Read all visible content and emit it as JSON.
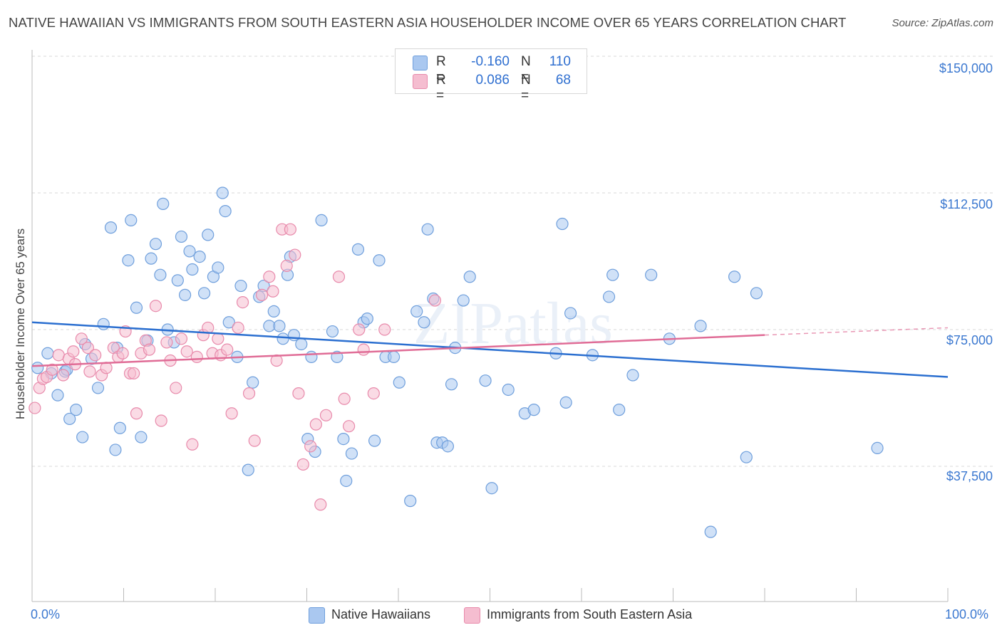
{
  "header": {
    "title": "NATIVE HAWAIIAN VS IMMIGRANTS FROM SOUTH EASTERN ASIA HOUSEHOLDER INCOME OVER 65 YEARS CORRELATION CHART",
    "source": "Source: ZipAtlas.com"
  },
  "watermark": "ZIPatlas",
  "colors": {
    "blue_fill": "#aac8f0",
    "blue_stroke": "#6f9fdc",
    "blue_line": "#2b6fd0",
    "pink_fill": "#f5bdd0",
    "pink_stroke": "#e88aab",
    "pink_line": "#e06c96",
    "axis_text": "#3b78d0",
    "grid": "#d9d9d9"
  },
  "legend_top": {
    "rows": [
      {
        "r_label": "R =",
        "r_value": "-0.160",
        "n_label": "N =",
        "n_value": "110"
      },
      {
        "r_label": "R =",
        "r_value": "0.086",
        "n_label": "N =",
        "n_value": "68"
      }
    ]
  },
  "legend_bottom": [
    "Native Hawaiians",
    "Immigrants from South Eastern Asia"
  ],
  "chart_data": {
    "type": "scatter",
    "title": "NATIVE HAWAIIAN VS IMMIGRANTS FROM SOUTH EASTERN ASIA HOUSEHOLDER INCOME OVER 65 YEARS CORRELATION CHART",
    "xlabel": "",
    "ylabel": "Householder Income Over 65 years",
    "xlim": [
      0,
      100
    ],
    "ylim": [
      0,
      150000
    ],
    "x_tick_labels": [
      "0.0%",
      "100.0%"
    ],
    "y_ticks": [
      {
        "value": 37500,
        "label": "$37,500"
      },
      {
        "value": 75000,
        "label": "$75,000"
      },
      {
        "value": 112500,
        "label": "$112,500"
      },
      {
        "value": 150000,
        "label": "$150,000"
      }
    ],
    "grid": "horizontal dashed",
    "legend_position": "top-center",
    "series": [
      {
        "name": "Native Hawaiians",
        "color": "#6f9fdc",
        "trend": {
          "x": [
            0,
            100
          ],
          "y": [
            77000,
            62000
          ]
        },
        "points": [
          [
            0.6,
            64500
          ],
          [
            1.7,
            68500
          ],
          [
            2.1,
            63000
          ],
          [
            2.8,
            57000
          ],
          [
            3.6,
            63500
          ],
          [
            3.8,
            64000
          ],
          [
            4.1,
            50500
          ],
          [
            4.8,
            53000
          ],
          [
            5.5,
            45500
          ],
          [
            5.8,
            71000
          ],
          [
            6.5,
            67000
          ],
          [
            7.2,
            59000
          ],
          [
            7.8,
            76500
          ],
          [
            8.6,
            103000
          ],
          [
            9.1,
            42000
          ],
          [
            9.3,
            70000
          ],
          [
            9.6,
            48000
          ],
          [
            10.5,
            94000
          ],
          [
            10.8,
            105000
          ],
          [
            11.4,
            81000
          ],
          [
            11.9,
            45500
          ],
          [
            12.6,
            72000
          ],
          [
            13.0,
            94500
          ],
          [
            13.5,
            98500
          ],
          [
            14.0,
            90000
          ],
          [
            14.3,
            109500
          ],
          [
            14.8,
            75000
          ],
          [
            15.5,
            71500
          ],
          [
            15.9,
            88500
          ],
          [
            16.3,
            100500
          ],
          [
            16.7,
            84500
          ],
          [
            17.2,
            96500
          ],
          [
            17.5,
            91500
          ],
          [
            18.3,
            95000
          ],
          [
            18.8,
            85000
          ],
          [
            19.2,
            101000
          ],
          [
            19.8,
            89500
          ],
          [
            20.3,
            92000
          ],
          [
            20.8,
            112500
          ],
          [
            21.1,
            107500
          ],
          [
            21.5,
            77000
          ],
          [
            22.4,
            67500
          ],
          [
            22.8,
            87000
          ],
          [
            23.6,
            36500
          ],
          [
            24.1,
            60500
          ],
          [
            24.8,
            84000
          ],
          [
            25.3,
            87000
          ],
          [
            25.9,
            76000
          ],
          [
            26.4,
            80000
          ],
          [
            27.0,
            76000
          ],
          [
            27.4,
            72500
          ],
          [
            27.9,
            90000
          ],
          [
            28.2,
            95000
          ],
          [
            28.6,
            73500
          ],
          [
            29.4,
            71000
          ],
          [
            30.1,
            45000
          ],
          [
            30.5,
            67500
          ],
          [
            30.9,
            41500
          ],
          [
            31.6,
            105000
          ],
          [
            32.8,
            74500
          ],
          [
            33.3,
            67500
          ],
          [
            34.0,
            45000
          ],
          [
            34.3,
            33500
          ],
          [
            34.9,
            41000
          ],
          [
            35.6,
            97000
          ],
          [
            36.2,
            77000
          ],
          [
            36.6,
            78000
          ],
          [
            37.4,
            44500
          ],
          [
            37.9,
            94000
          ],
          [
            38.6,
            67500
          ],
          [
            39.5,
            67500
          ],
          [
            40.1,
            60500
          ],
          [
            41.3,
            28000
          ],
          [
            42.0,
            80000
          ],
          [
            42.8,
            77000
          ],
          [
            43.2,
            102500
          ],
          [
            43.8,
            83500
          ],
          [
            44.2,
            44000
          ],
          [
            44.8,
            44000
          ],
          [
            45.4,
            43000
          ],
          [
            45.8,
            60000
          ],
          [
            46.2,
            70000
          ],
          [
            47.1,
            83000
          ],
          [
            47.8,
            89500
          ],
          [
            49.5,
            61000
          ],
          [
            50.2,
            31500
          ],
          [
            52.0,
            58500
          ],
          [
            53.8,
            52000
          ],
          [
            54.8,
            53000
          ],
          [
            57.2,
            68500
          ],
          [
            57.9,
            104000
          ],
          [
            58.3,
            55000
          ],
          [
            58.8,
            79500
          ],
          [
            61.2,
            68000
          ],
          [
            63.0,
            84000
          ],
          [
            63.4,
            90000
          ],
          [
            64.1,
            53000
          ],
          [
            65.6,
            62500
          ],
          [
            67.6,
            90000
          ],
          [
            69.6,
            72500
          ],
          [
            73.0,
            76000
          ],
          [
            74.1,
            19500
          ],
          [
            76.7,
            89500
          ],
          [
            78.0,
            40000
          ],
          [
            79.1,
            85000
          ],
          [
            92.3,
            42500
          ]
        ]
      },
      {
        "name": "Immigrants from South Eastern Asia",
        "color": "#e88aab",
        "trend": {
          "x": [
            0,
            80
          ],
          "y": [
            65000,
            73500
          ],
          "dashed_to": {
            "x": 100,
            "y": 75500
          }
        },
        "points": [
          [
            0.3,
            53500
          ],
          [
            0.8,
            59000
          ],
          [
            1.2,
            61500
          ],
          [
            1.6,
            62000
          ],
          [
            2.2,
            64000
          ],
          [
            2.9,
            68000
          ],
          [
            3.4,
            62500
          ],
          [
            4.0,
            67000
          ],
          [
            4.5,
            69000
          ],
          [
            4.7,
            65500
          ],
          [
            5.4,
            72500
          ],
          [
            6.1,
            70000
          ],
          [
            6.3,
            63500
          ],
          [
            6.9,
            68000
          ],
          [
            7.6,
            62500
          ],
          [
            8.1,
            64500
          ],
          [
            8.9,
            70000
          ],
          [
            9.4,
            67500
          ],
          [
            9.9,
            68500
          ],
          [
            10.2,
            74500
          ],
          [
            10.7,
            63000
          ],
          [
            11.1,
            63000
          ],
          [
            11.4,
            52000
          ],
          [
            11.9,
            68500
          ],
          [
            12.4,
            72000
          ],
          [
            12.8,
            69500
          ],
          [
            13.5,
            81500
          ],
          [
            14.1,
            50000
          ],
          [
            14.7,
            71500
          ],
          [
            15.1,
            66500
          ],
          [
            15.7,
            59000
          ],
          [
            16.3,
            72500
          ],
          [
            16.9,
            69000
          ],
          [
            17.5,
            43500
          ],
          [
            18.0,
            67500
          ],
          [
            18.7,
            73500
          ],
          [
            19.2,
            75500
          ],
          [
            19.7,
            68500
          ],
          [
            20.3,
            72500
          ],
          [
            20.6,
            68000
          ],
          [
            21.3,
            69500
          ],
          [
            21.8,
            52000
          ],
          [
            22.5,
            75500
          ],
          [
            23.0,
            82500
          ],
          [
            23.7,
            57500
          ],
          [
            24.3,
            44500
          ],
          [
            25.1,
            84500
          ],
          [
            25.9,
            89500
          ],
          [
            26.3,
            85500
          ],
          [
            26.7,
            66500
          ],
          [
            27.3,
            102500
          ],
          [
            27.8,
            92500
          ],
          [
            28.2,
            102500
          ],
          [
            28.7,
            95500
          ],
          [
            29.1,
            57500
          ],
          [
            29.6,
            38000
          ],
          [
            30.4,
            43000
          ],
          [
            31.0,
            49000
          ],
          [
            31.5,
            27000
          ],
          [
            32.1,
            51500
          ],
          [
            33.5,
            89500
          ],
          [
            34.1,
            56000
          ],
          [
            34.6,
            48500
          ],
          [
            35.7,
            75000
          ],
          [
            36.2,
            69500
          ],
          [
            37.3,
            57500
          ],
          [
            38.5,
            75000
          ],
          [
            44.0,
            83000
          ]
        ]
      }
    ]
  }
}
